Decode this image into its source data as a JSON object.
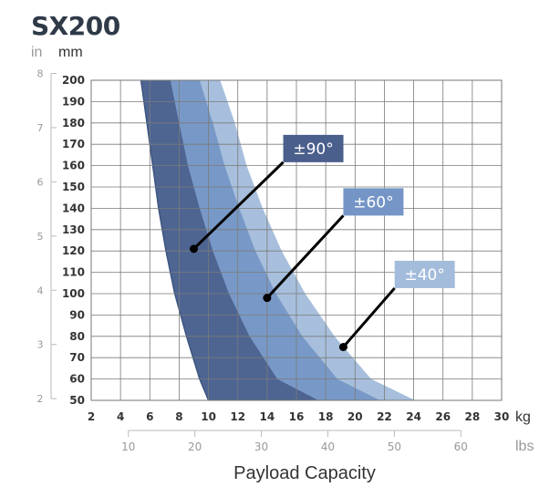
{
  "chart_data": {
    "type": "area",
    "title": "SX200",
    "y_units": {
      "primary": "mm",
      "secondary": "in"
    },
    "x_units": {
      "primary": "kg",
      "secondary": "lbs"
    },
    "xlabel": "Payload Capacity",
    "xlim": [
      2,
      30
    ],
    "ylim": [
      50,
      200
    ],
    "x_ticks": [
      2,
      4,
      6,
      8,
      10,
      12,
      14,
      16,
      18,
      20,
      22,
      24,
      26,
      28,
      30
    ],
    "y_ticks": [
      50,
      60,
      70,
      80,
      90,
      100,
      110,
      120,
      130,
      140,
      150,
      160,
      170,
      180,
      190,
      200
    ],
    "y_ticks_in": [
      2,
      3,
      4,
      5,
      6,
      7,
      8
    ],
    "x_ticks_lbs": [
      10,
      20,
      30,
      40,
      50,
      60
    ],
    "grid": true,
    "series": [
      {
        "name": "±40°",
        "color": "#a7bfdc",
        "label_color": "#a3bcdb",
        "x": [
          10.8,
          11.8,
          12.6,
          13.7,
          15.0,
          16.6,
          18.6,
          21.1,
          24.1
        ],
        "y": [
          200,
          180,
          160,
          140,
          120,
          100,
          80,
          60,
          50
        ]
      },
      {
        "name": "±60°",
        "color": "#7899c7",
        "label_color": "#7495c6",
        "x": [
          9.4,
          10.3,
          11.1,
          12.1,
          13.2,
          14.6,
          16.4,
          18.8,
          21.7
        ],
        "y": [
          200,
          180,
          160,
          140,
          120,
          100,
          80,
          60,
          50
        ]
      },
      {
        "name": "±90°",
        "color": "#4e6592",
        "label_color": "#4b5f8c",
        "x": [
          7.4,
          8.0,
          8.6,
          9.4,
          10.3,
          11.4,
          12.8,
          14.7,
          17.5
        ],
        "y": [
          200,
          180,
          160,
          140,
          120,
          100,
          80,
          60,
          50
        ]
      }
    ],
    "inner_boundary": {
      "color": "#3d5580",
      "x": [
        5.4,
        5.8,
        6.2,
        6.6,
        7.1,
        7.7,
        8.5,
        9.4,
        10.0
      ],
      "y": [
        200,
        180,
        160,
        140,
        120,
        100,
        80,
        60,
        50
      ]
    },
    "annotations": [
      {
        "series": "±90°",
        "point": [
          9.0,
          121
        ],
        "label_pos": [
          15.1,
          168
        ]
      },
      {
        "series": "±60°",
        "point": [
          14.0,
          98
        ],
        "label_pos": [
          19.2,
          143
        ]
      },
      {
        "series": "±40°",
        "point": [
          19.2,
          75
        ],
        "label_pos": [
          22.7,
          109
        ]
      }
    ]
  }
}
